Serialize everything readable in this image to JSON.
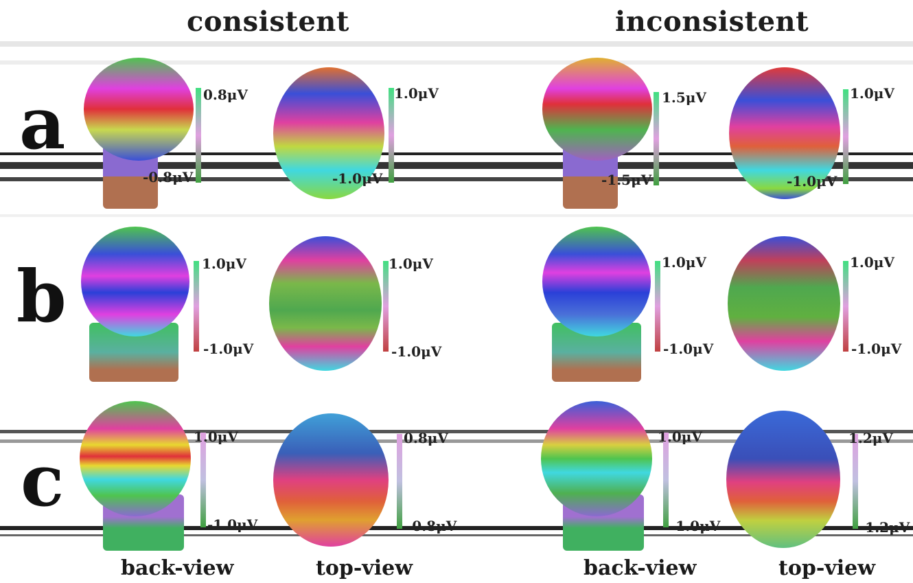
{
  "columns": {
    "left": "consistent",
    "right": "inconsistent"
  },
  "rows": [
    {
      "letter": "a",
      "cells": [
        {
          "max": "0.8μV",
          "min": "-0.8μV"
        },
        {
          "max": "1.0μV",
          "min": "-1.0μV"
        },
        {
          "max": "1.5μV",
          "min": "-1.5μV"
        },
        {
          "max": "1.0μV",
          "min": "-1.0μV"
        }
      ]
    },
    {
      "letter": "b",
      "cells": [
        {
          "max": "1.0μV",
          "min": "-1.0μV"
        },
        {
          "max": "1.0μV",
          "min": "-1.0μV"
        },
        {
          "max": "1.0μV",
          "min": "-1.0μV"
        },
        {
          "max": "1.0μV",
          "min": "-1.0μV"
        }
      ]
    },
    {
      "letter": "c",
      "cells": [
        {
          "max": "1.0μV",
          "min": "-1.0μV"
        },
        {
          "max": "0.8μV",
          "min": "-0.8μV"
        },
        {
          "max": "1.0μV",
          "min": "-1.0μV"
        },
        {
          "max": "1.2μV",
          "min": "-1.2μV"
        }
      ]
    }
  ],
  "views": [
    "back-view",
    "top-view",
    "back-view",
    "top-view"
  ],
  "colors": {
    "red": "#e0303a",
    "magenta": "#e040e0",
    "blue": "#3a4fd8",
    "green": "#4fc44f",
    "yellow": "#e8d830",
    "cyan": "#40d8e0",
    "skin": "#b07050"
  }
}
